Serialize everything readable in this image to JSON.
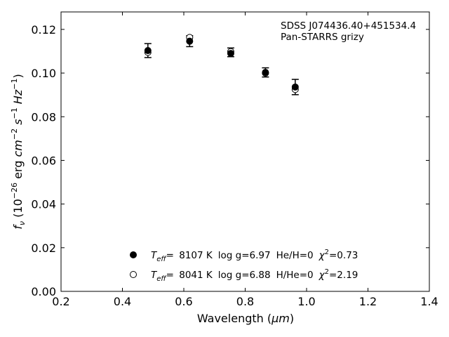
{
  "chart_data": {
    "type": "scatter",
    "xlabel_prefix": "Wavelength (",
    "xlabel_unit": "μm",
    "xlabel_suffix": ")",
    "ylabel_f": "f",
    "ylabel_sub": "ν",
    "ylabel_open": " (10",
    "ylabel_exp": "−26",
    "ylabel_erg": " erg ",
    "ylabel_cm": "cm",
    "ylabel_cm_exp": "−2",
    "ylabel_s": " s",
    "ylabel_s_exp": "−1",
    "ylabel_hz": " Hz",
    "ylabel_hz_exp": "−1",
    "ylabel_close": ")",
    "xlim": [
      0.2,
      1.4
    ],
    "ylim": [
      0.0,
      0.128
    ],
    "xticks": [
      0.2,
      0.4,
      0.6,
      0.8,
      1.0,
      1.2,
      1.4
    ],
    "xtick_labels": [
      "0.2",
      "0.4",
      "0.6",
      "0.8",
      "1.0",
      "1.2",
      "1.4"
    ],
    "yticks": [
      0.0,
      0.02,
      0.04,
      0.06,
      0.08,
      0.1,
      0.12
    ],
    "ytick_labels": [
      "0.00",
      "0.02",
      "0.04",
      "0.06",
      "0.08",
      "0.10",
      "0.12"
    ],
    "grid": false,
    "annotation": [
      "SDSS J074436.40+451534.4",
      "Pan-STARRS grizy"
    ],
    "observed": {
      "x": [
        0.483,
        0.619,
        0.753,
        0.866,
        0.963
      ],
      "y": [
        0.1103,
        0.1146,
        0.1095,
        0.1003,
        0.0936
      ],
      "yerr": [
        0.0032,
        0.0025,
        0.002,
        0.0021,
        0.0035
      ]
    },
    "series": [
      {
        "marker": "filled",
        "teff": "8107 K",
        "logg": "log g=6.97",
        "comp": "He/H=0",
        "chi_value": "=0.73",
        "x": [
          0.483,
          0.619,
          0.753,
          0.866,
          0.963
        ],
        "y": [
          0.1103,
          0.1146,
          0.109,
          0.1003,
          0.0936
        ]
      },
      {
        "marker": "open",
        "teff": "8041 K",
        "logg": "log g=6.88",
        "comp": "H/He=0",
        "chi_value": "=2.19",
        "x": [
          0.483,
          0.619,
          0.753,
          0.866,
          0.963
        ],
        "y": [
          0.1095,
          0.1163,
          0.1098,
          0.1,
          0.0925
        ]
      }
    ],
    "legend_teff_T": "T",
    "legend_teff_sub": "eff",
    "legend_eq": "= ",
    "legend_chi": "χ",
    "legend_chi_exp": "2",
    "legend_placement": "lower-center"
  }
}
